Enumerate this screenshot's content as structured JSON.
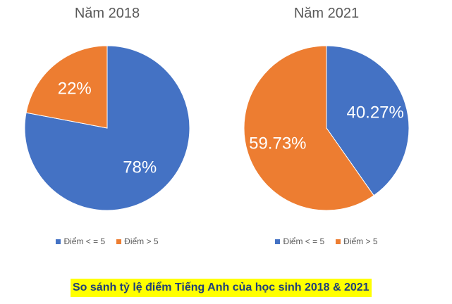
{
  "caption": "So sánh tỷ lệ điểm Tiếng Anh của học sinh 2018 & 2021",
  "colors": {
    "series_1": "#4472C4",
    "series_2": "#ED7D31",
    "title_text": "#595959",
    "caption_bg": "#FFFF00",
    "caption_text": "#1F3F7A"
  },
  "chart_data": [
    {
      "type": "pie",
      "title": "Năm 2018",
      "categories": [
        "Điểm < = 5",
        "Điểm > 5"
      ],
      "values": [
        78,
        22
      ],
      "labels": [
        "78%",
        "22%"
      ],
      "legend_position": "bottom"
    },
    {
      "type": "pie",
      "title": "Năm 2021",
      "categories": [
        "Điểm < = 5",
        "Điểm > 5"
      ],
      "values": [
        40.27,
        59.73
      ],
      "labels": [
        "40.27%",
        "59.73%"
      ],
      "legend_position": "bottom"
    }
  ]
}
